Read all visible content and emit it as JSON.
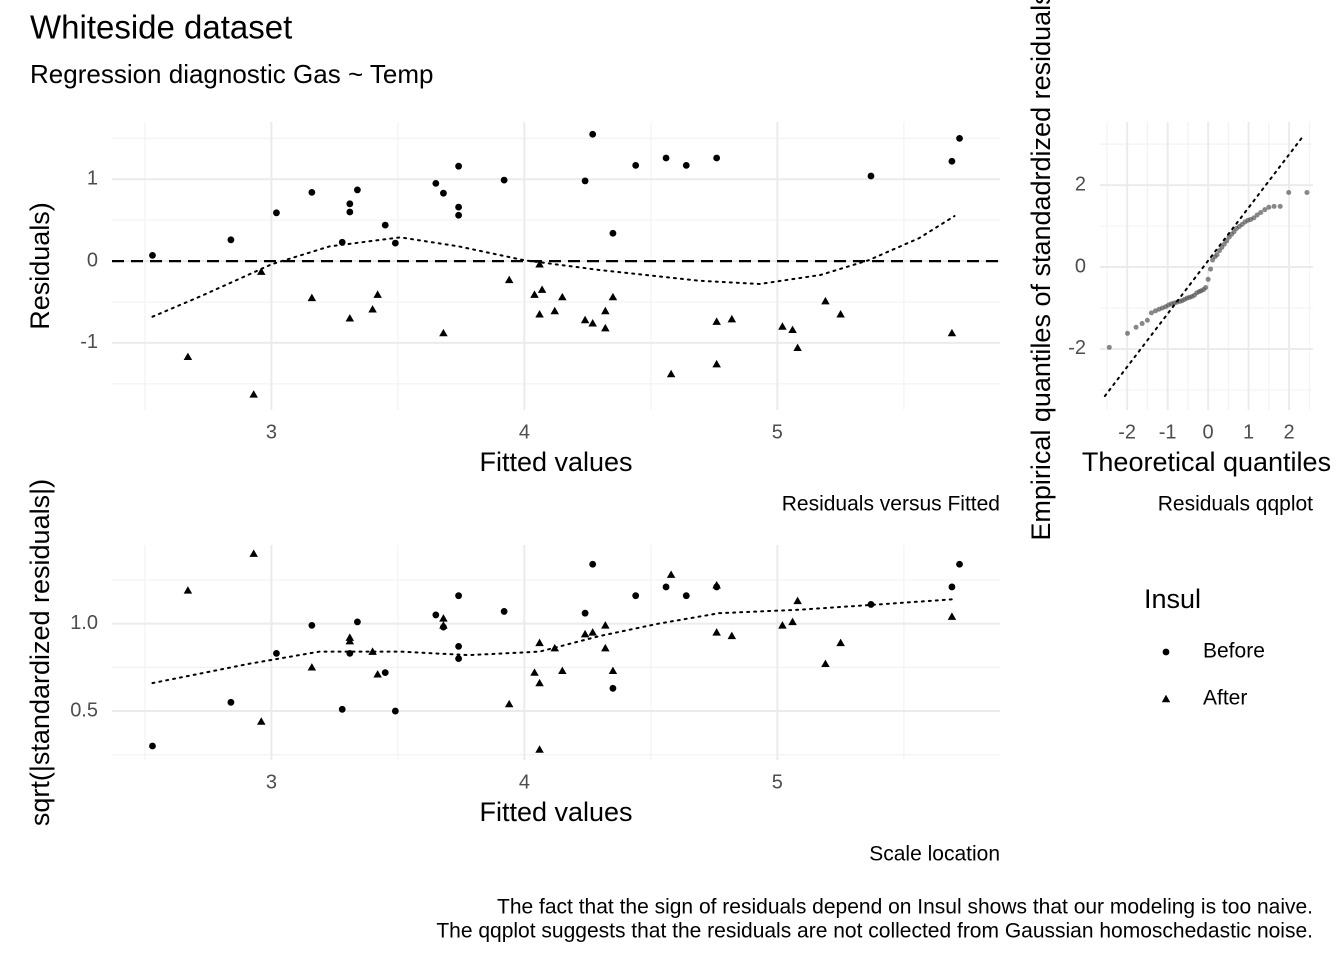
{
  "title": "Whiteside dataset",
  "subtitle": "Regression diagnostic  Gas ~ Temp",
  "caption": [
    "The fact that the sign of residuals depend on Insul shows that our modeling is too naive.",
    "The qqplot suggests that the residuals are not collected from Gaussian homoschedastic noise."
  ],
  "legend": {
    "title": "Insul",
    "entries": [
      {
        "name": "Before",
        "shape": "circle"
      },
      {
        "name": "After",
        "shape": "triangle"
      }
    ]
  },
  "chart_data": [
    {
      "type": "scatter",
      "caption": "Residuals versus Fitted",
      "xlabel": "Fitted values",
      "ylabel": "Residuals)",
      "xlim": [
        2.37,
        5.88
      ],
      "ylim": [
        -1.82,
        1.7
      ],
      "xticks": [
        3,
        4,
        5
      ],
      "yticks": [
        -1,
        0,
        1
      ],
      "xminor": [
        2.5,
        3.5,
        4.5,
        5.5
      ],
      "yminor": [
        -1.5,
        -0.5,
        0.5,
        1.5
      ],
      "grid": true,
      "hline": 0,
      "series": [
        {
          "shape": "circle",
          "color": "#000000",
          "x": [
            2.53,
            2.84,
            3.02,
            3.16,
            3.31,
            3.31,
            3.34,
            3.28,
            3.45,
            3.49,
            3.65,
            3.68,
            3.74,
            3.74,
            3.74,
            3.92,
            4.24,
            4.27,
            4.35,
            4.44,
            4.56,
            4.64,
            4.76,
            5.37,
            5.69,
            5.72
          ],
          "y": [
            0.07,
            0.26,
            0.59,
            0.84,
            0.7,
            0.6,
            0.87,
            0.23,
            0.44,
            0.22,
            0.95,
            0.83,
            1.16,
            0.56,
            0.66,
            0.99,
            0.98,
            1.55,
            0.34,
            1.17,
            1.26,
            1.17,
            1.26,
            1.04,
            1.22,
            1.5
          ]
        },
        {
          "shape": "triangle",
          "color": "#000000",
          "x": [
            2.67,
            2.93,
            2.96,
            3.16,
            3.31,
            3.4,
            3.42,
            3.68,
            3.94,
            4.04,
            4.06,
            4.07,
            4.06,
            4.12,
            4.15,
            4.24,
            4.27,
            4.32,
            4.32,
            4.35,
            4.58,
            4.76,
            4.76,
            4.82,
            5.02,
            5.06,
            5.08,
            5.19,
            5.25,
            5.69
          ],
          "y": [
            -1.17,
            -1.63,
            -0.13,
            -0.45,
            -0.7,
            -0.59,
            -0.41,
            -0.88,
            -0.23,
            -0.41,
            -0.04,
            -0.35,
            -0.65,
            -0.61,
            -0.44,
            -0.72,
            -0.76,
            -0.61,
            -0.82,
            -0.44,
            -1.38,
            -0.74,
            -1.26,
            -0.71,
            -0.8,
            -0.84,
            -1.06,
            -0.49,
            -0.65,
            -0.88
          ]
        }
      ],
      "smooth": {
        "x": [
          2.53,
          2.72,
          3.0,
          3.23,
          3.51,
          3.74,
          4.0,
          4.3,
          4.69,
          4.93,
          5.17,
          5.36,
          5.56,
          5.7
        ],
        "y": [
          -0.68,
          -0.43,
          -0.04,
          0.18,
          0.29,
          0.18,
          0.01,
          -0.11,
          -0.24,
          -0.28,
          -0.17,
          0.01,
          0.28,
          0.55
        ]
      }
    },
    {
      "type": "scatter",
      "caption": "Scale location",
      "xlabel": "Fitted values",
      "ylabel": "sqrt(|standardized residuals|)",
      "xlim": [
        2.37,
        5.88
      ],
      "ylim": [
        0.22,
        1.45
      ],
      "xticks": [
        3,
        4,
        5
      ],
      "yticks": [
        0.5,
        {
          "value": 1,
          "label": "1.0"
        }
      ],
      "xminor": [
        2.5,
        3.5,
        4.5,
        5.5
      ],
      "yminor": [
        0.25,
        0.75,
        1.25
      ],
      "grid": true,
      "series": [
        {
          "shape": "circle",
          "color": "#000000",
          "x": [
            2.53,
            2.84,
            3.02,
            3.16,
            3.28,
            3.31,
            3.34,
            3.45,
            3.49,
            3.65,
            3.68,
            3.74,
            3.74,
            3.74,
            3.92,
            4.24,
            4.27,
            4.35,
            4.44,
            4.56,
            4.64,
            4.76,
            5.37,
            5.69,
            5.72
          ],
          "y": [
            0.3,
            0.55,
            0.83,
            0.99,
            0.51,
            0.83,
            1.01,
            0.72,
            0.5,
            1.05,
            0.98,
            1.16,
            0.87,
            0.8,
            1.07,
            1.06,
            1.34,
            0.63,
            1.16,
            1.21,
            1.16,
            1.21,
            1.11,
            1.21,
            1.34
          ]
        },
        {
          "shape": "triangle",
          "color": "#000000",
          "x": [
            2.67,
            2.93,
            2.96,
            3.16,
            3.31,
            3.31,
            3.4,
            3.42,
            3.68,
            3.68,
            3.94,
            4.04,
            4.06,
            4.06,
            4.06,
            4.12,
            4.15,
            4.24,
            4.27,
            4.32,
            4.32,
            4.35,
            4.58,
            4.76,
            4.76,
            4.82,
            5.02,
            5.06,
            5.08,
            5.19,
            5.25,
            5.69
          ],
          "y": [
            1.19,
            1.4,
            0.44,
            0.75,
            0.92,
            0.9,
            0.84,
            0.71,
            1.03,
            0.99,
            0.54,
            0.72,
            0.89,
            0.66,
            0.28,
            0.86,
            0.73,
            0.94,
            0.95,
            0.99,
            0.86,
            0.73,
            1.28,
            1.22,
            0.95,
            0.93,
            0.99,
            1.01,
            1.13,
            0.77,
            0.89,
            1.04
          ]
        }
      ],
      "smooth": {
        "x": [
          2.53,
          2.91,
          3.19,
          3.51,
          3.78,
          4.06,
          4.3,
          4.53,
          4.77,
          5.09,
          5.4,
          5.7
        ],
        "y": [
          0.66,
          0.77,
          0.84,
          0.84,
          0.82,
          0.84,
          0.93,
          1.0,
          1.06,
          1.08,
          1.11,
          1.14
        ]
      }
    },
    {
      "type": "scatter",
      "caption": "Residuals qqplot",
      "xlabel": "Theoretical quantiles",
      "ylabel": "Empirical quantiles of standadrdized residuals",
      "xlim": [
        -2.67,
        2.59
      ],
      "ylim": [
        -3.49,
        3.54
      ],
      "xticks": [
        -2,
        -1,
        0,
        1,
        2
      ],
      "yticks": [
        -2,
        0,
        2
      ],
      "xminor": [
        -2.5,
        -1.5,
        -0.5,
        0.5,
        1.5,
        2.5
      ],
      "yminor": [
        -3,
        -1,
        1,
        3
      ],
      "grid": true,
      "series": [
        {
          "shape": "circle",
          "color": "#555555",
          "opacity": 0.7,
          "size": 2.5,
          "x": [
            -2.44,
            -1.99,
            -1.78,
            -1.63,
            -1.5,
            -1.4,
            -1.3,
            -1.21,
            -1.13,
            -1.05,
            -0.98,
            -0.91,
            -0.84,
            -0.77,
            -0.7,
            -0.64,
            -0.58,
            -0.52,
            -0.46,
            -0.4,
            -0.34,
            -0.28,
            -0.22,
            -0.17,
            -0.11,
            -0.06,
            0,
            0.06,
            0.11,
            0.17,
            0.22,
            0.28,
            0.34,
            0.4,
            0.46,
            0.52,
            0.58,
            0.64,
            0.7,
            0.77,
            0.84,
            0.91,
            0.98,
            1.05,
            1.13,
            1.21,
            1.3,
            1.4,
            1.5,
            1.63,
            1.78,
            1.99,
            2.44
          ],
          "y": [
            -1.96,
            -1.62,
            -1.47,
            -1.38,
            -1.3,
            -1.12,
            -1.07,
            -1.03,
            -1.0,
            -0.97,
            -0.93,
            -0.9,
            -0.88,
            -0.86,
            -0.84,
            -0.82,
            -0.79,
            -0.76,
            -0.74,
            -0.72,
            -0.69,
            -0.63,
            -0.6,
            -0.58,
            -0.55,
            -0.5,
            -0.3,
            -0.05,
            0.17,
            0.25,
            0.3,
            0.4,
            0.48,
            0.56,
            0.64,
            0.73,
            0.8,
            0.86,
            0.94,
            0.99,
            1.04,
            1.1,
            1.14,
            1.16,
            1.2,
            1.27,
            1.33,
            1.4,
            1.46,
            1.48,
            1.48,
            1.82,
            1.82
          ]
        }
      ],
      "smooth": {
        "x": [
          -2.55,
          2.35
        ],
        "y": [
          -3.15,
          3.2
        ]
      }
    }
  ]
}
